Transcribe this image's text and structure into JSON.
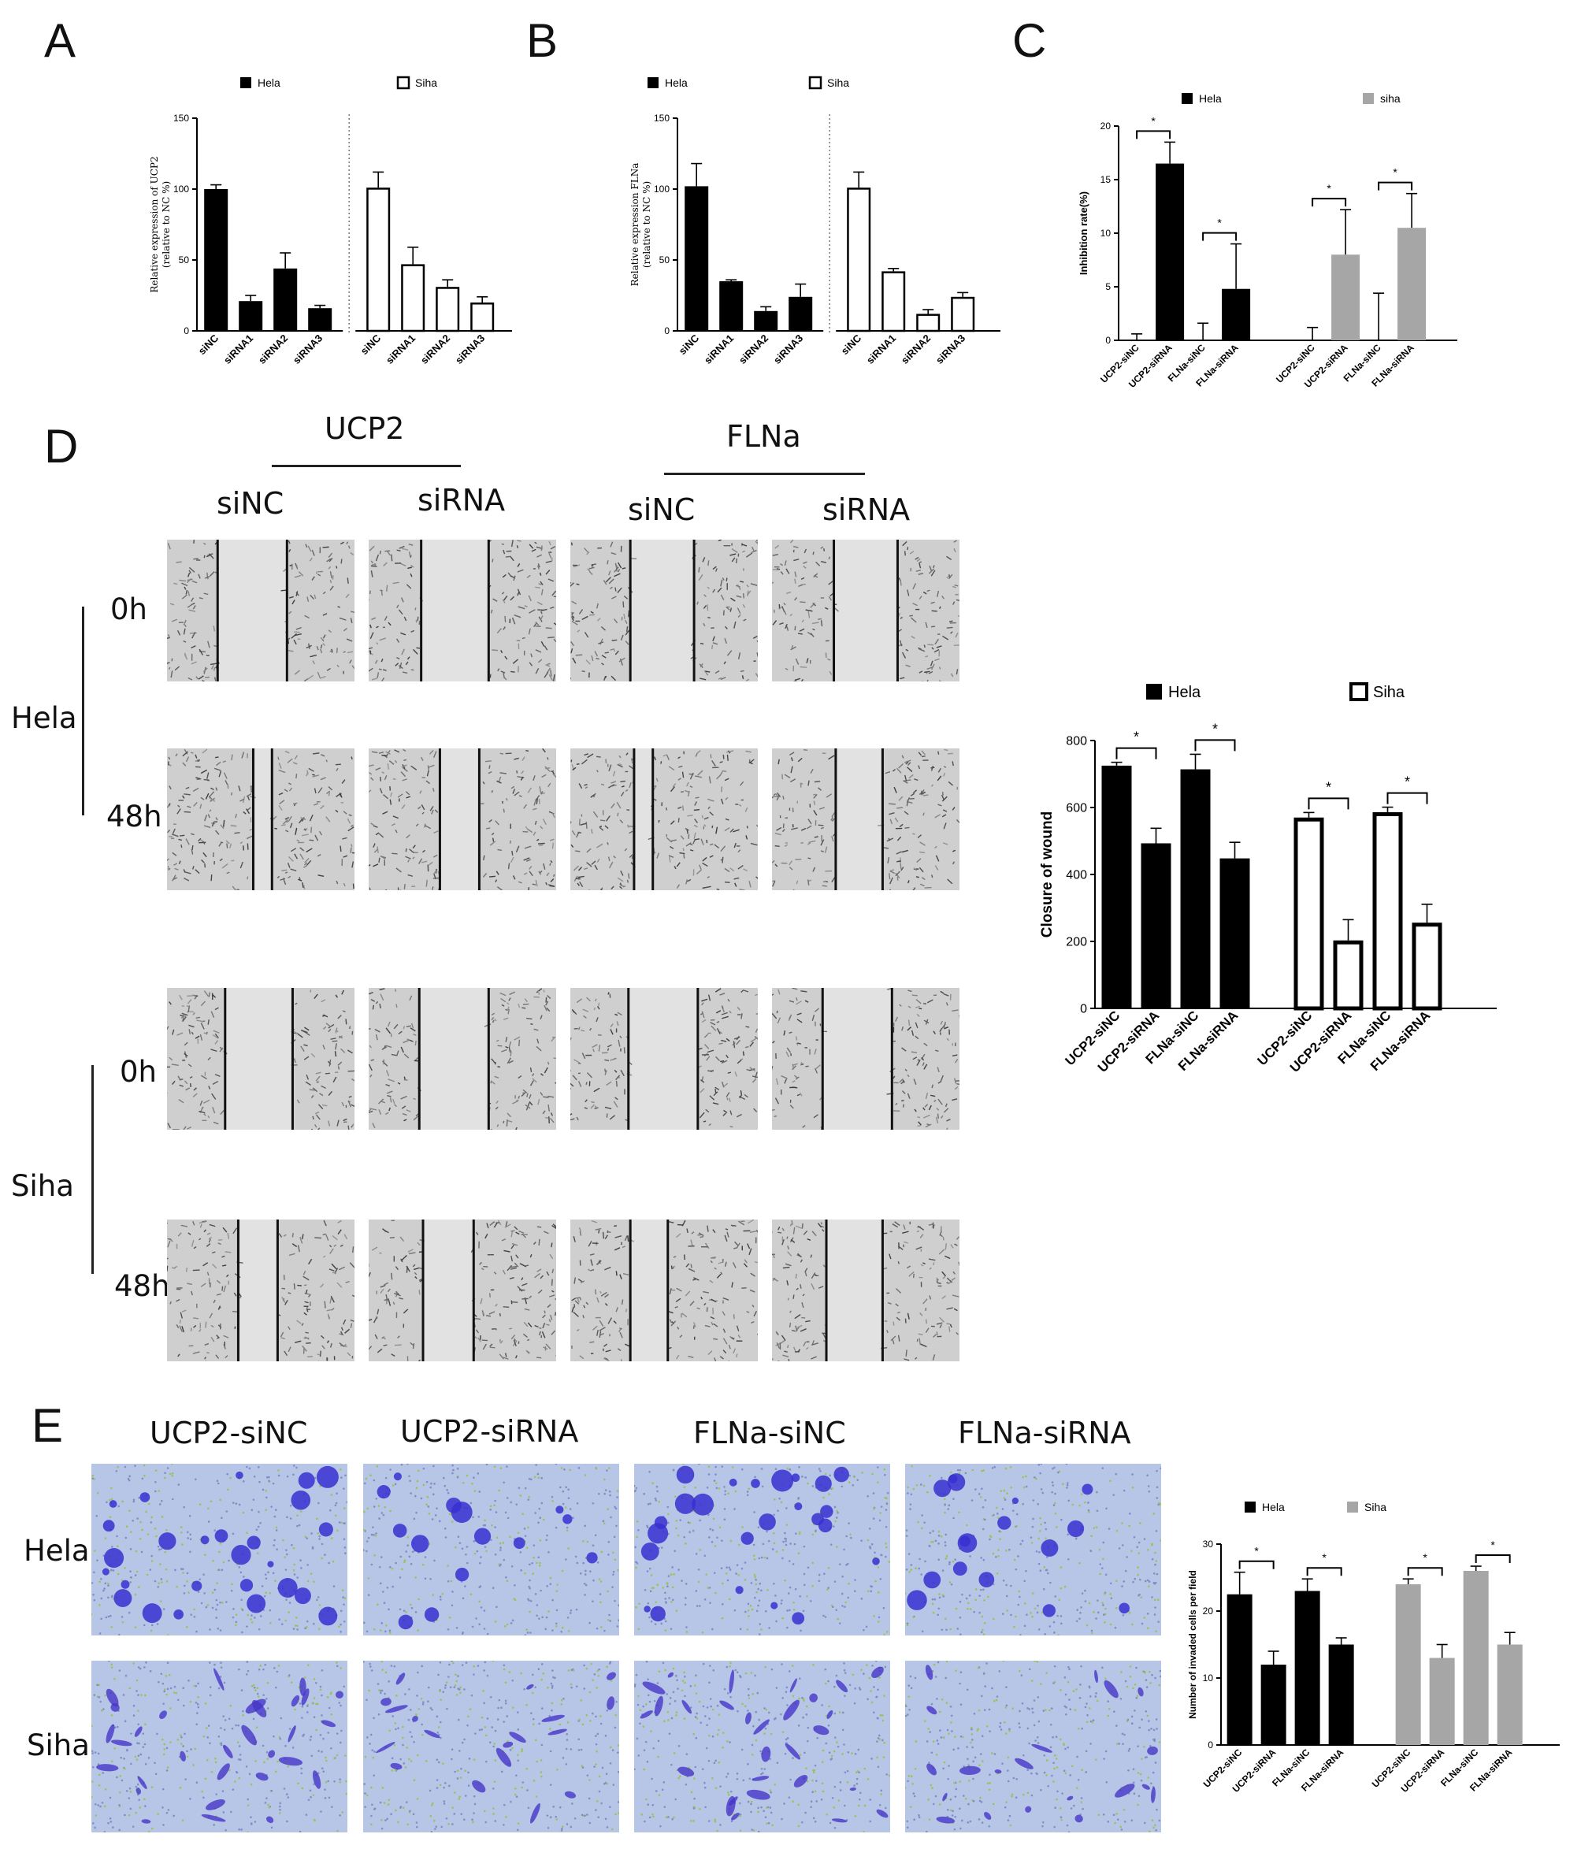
{
  "panels": {
    "a": "A",
    "b": "B",
    "c": "C",
    "d": "D",
    "e": "E"
  },
  "d": {
    "groups": [
      "UCP2",
      "FLNa"
    ],
    "cols": [
      "siNC",
      "siRNA",
      "siNC",
      "siRNA"
    ],
    "cells": [
      "Hela",
      "Siha"
    ],
    "times": [
      "0h",
      "48h",
      "0h",
      "48h"
    ]
  },
  "e": {
    "cols": [
      "UCP2-siNC",
      "UCP2-siRNA",
      "FLNa-siNC",
      "FLNa-siRNA"
    ],
    "rows": [
      "Hela",
      "Siha"
    ]
  },
  "chart_data": [
    {
      "id": "A",
      "type": "bar",
      "ylabel": "Relative expression of UCP2\n(relative to NC %)",
      "ylim": [
        0,
        150
      ],
      "yticks": [
        0,
        50,
        100,
        150
      ],
      "categories": [
        "siNC",
        "siRNA1",
        "siRNA2",
        "siRNA3",
        "siNC",
        "siRNA1",
        "siRNA2",
        "siRNA3"
      ],
      "series": [
        {
          "name": "Hela",
          "fill": "#000000",
          "values": [
            100,
            21,
            44,
            16,
            null,
            null,
            null,
            null
          ],
          "err": [
            3,
            4,
            11,
            2,
            null,
            null,
            null,
            null
          ]
        },
        {
          "name": "Siha",
          "fill": "#ffffff",
          "values": [
            null,
            null,
            null,
            null,
            101,
            47,
            31,
            20
          ],
          "err": [
            null,
            null,
            null,
            null,
            11,
            12,
            5,
            4
          ]
        }
      ],
      "legend": "top",
      "divider": "dotted line between Hela and Siha groups"
    },
    {
      "id": "B",
      "type": "bar",
      "ylabel": "Relative expression FLNa\n(relative to NC %)",
      "ylim": [
        0,
        150
      ],
      "yticks": [
        0,
        50,
        100,
        150
      ],
      "categories": [
        "siNC",
        "siRNA1",
        "siRNA2",
        "siRNA3",
        "siNC",
        "siRNA1",
        "siRNA2",
        "siRNA3"
      ],
      "series": [
        {
          "name": "Hela",
          "fill": "#000000",
          "values": [
            102,
            35,
            14,
            24,
            null,
            null,
            null,
            null
          ],
          "err": [
            16,
            1,
            3,
            9,
            null,
            null,
            null,
            null
          ]
        },
        {
          "name": "Siha",
          "fill": "#ffffff",
          "values": [
            null,
            null,
            null,
            null,
            101,
            42,
            12,
            24
          ],
          "err": [
            null,
            null,
            null,
            null,
            11,
            2,
            3,
            3
          ]
        }
      ],
      "legend": "top",
      "divider": "dotted line between Hela and Siha groups"
    },
    {
      "id": "C",
      "type": "bar",
      "ylabel": "Inhibition rate(%)",
      "ylim": [
        0,
        20
      ],
      "yticks": [
        0,
        5,
        10,
        15,
        20
      ],
      "categories": [
        "UCP2-siNC",
        "UCP2-siRNA",
        "FLNa-siNC",
        "FLNa-siRNA",
        "UCP2-siNC",
        "UCP2-siRNA",
        "FLNa-siNC",
        "FLNa-siRNA"
      ],
      "series": [
        {
          "name": "Hela",
          "fill": "#000000",
          "values": [
            0,
            16.5,
            0,
            4.8,
            null,
            null,
            null,
            null
          ],
          "err": [
            0.6,
            2,
            1.6,
            4.2,
            null,
            null,
            null,
            null
          ]
        },
        {
          "name": "siha",
          "fill": "#a6a6a6",
          "values": [
            null,
            null,
            null,
            null,
            0,
            8,
            0,
            10.5
          ],
          "err": [
            null,
            null,
            null,
            null,
            1.2,
            4.2,
            4.4,
            3.2
          ]
        }
      ],
      "significance": "*",
      "legend": "top"
    },
    {
      "id": "D",
      "type": "bar",
      "ylabel": "Closure of wound",
      "ylim": [
        0,
        800
      ],
      "yticks": [
        0,
        200,
        400,
        600,
        800
      ],
      "categories": [
        "UCP2-siNC",
        "UCP2-siRNA",
        "FLNa-siNC",
        "FLNa-siRNA",
        "UCP2-siNC",
        "UCP2-siRNA",
        "FLNa-siNC",
        "FLNa-siRNA"
      ],
      "series": [
        {
          "name": "Hela",
          "fill": "#000000",
          "values": [
            725,
            493,
            714,
            448,
            null,
            null,
            null,
            null
          ],
          "err": [
            10,
            45,
            45,
            48,
            null,
            null,
            null,
            null
          ]
        },
        {
          "name": "Siha",
          "fill": "#ffffff",
          "values": [
            null,
            null,
            null,
            null,
            570,
            203,
            586,
            256
          ],
          "err": [
            null,
            null,
            null,
            null,
            15,
            62,
            15,
            55
          ]
        }
      ],
      "significance": "*",
      "legend": "top"
    },
    {
      "id": "E",
      "type": "bar",
      "ylabel": "Number of invaded cells per field",
      "ylim": [
        0,
        30
      ],
      "yticks": [
        0,
        10,
        20,
        30
      ],
      "categories": [
        "UCP2-siNC",
        "UCP2-siRNA",
        "FLNa-siNC",
        "FLNa-siRNA",
        "UCP2-siNC",
        "UCP2-siRNA",
        "FLNa-siNC",
        "FLNa-siRNA"
      ],
      "series": [
        {
          "name": "Hela",
          "fill": "#000000",
          "values": [
            22.5,
            12,
            23,
            15,
            null,
            null,
            null,
            null
          ],
          "err": [
            3.3,
            2,
            1.8,
            1,
            null,
            null,
            null,
            null
          ]
        },
        {
          "name": "Siha",
          "fill": "#a6a6a6",
          "values": [
            null,
            null,
            null,
            null,
            24,
            13,
            26,
            15
          ],
          "err": [
            null,
            null,
            null,
            null,
            0.8,
            2,
            0.7,
            1.8
          ]
        }
      ],
      "significance": "*",
      "legend": "top"
    }
  ]
}
